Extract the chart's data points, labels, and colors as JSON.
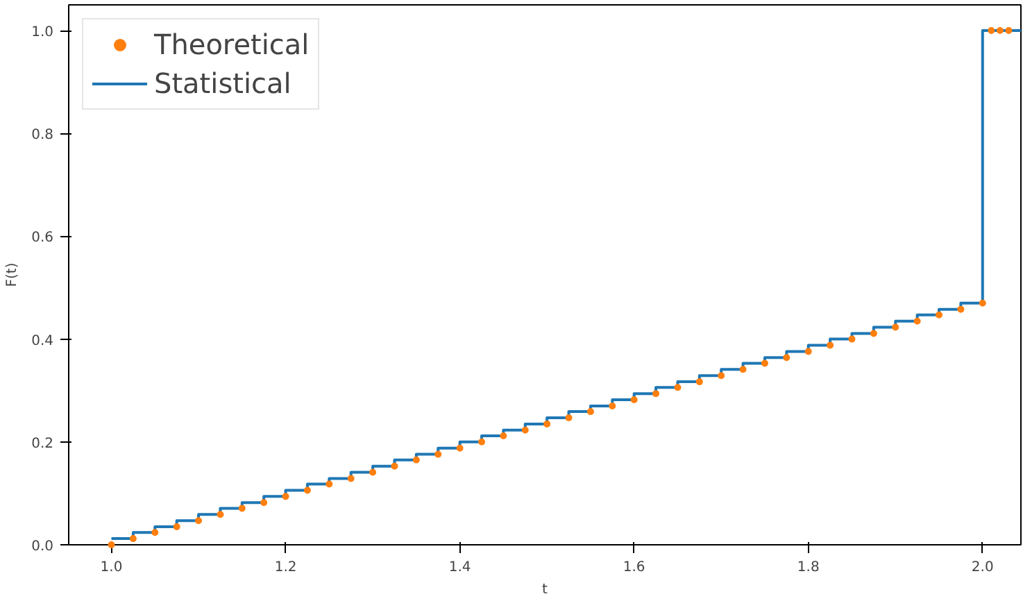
{
  "chart_data": {
    "type": "scatter",
    "xlabel": "t",
    "ylabel": "F(t)",
    "xlim": [
      0.951,
      2.044
    ],
    "ylim": [
      0,
      1.05
    ],
    "xticks": [
      {
        "value": 1.0,
        "label": "1.0"
      },
      {
        "value": 1.2,
        "label": "1.2"
      },
      {
        "value": 1.4,
        "label": "1.4"
      },
      {
        "value": 1.6,
        "label": "1.6"
      },
      {
        "value": 1.8,
        "label": "1.8"
      },
      {
        "value": 2.0,
        "label": "2.0"
      }
    ],
    "yticks": [
      {
        "value": 0,
        "label": "0.0"
      },
      {
        "value": 0.2,
        "label": "0.2"
      },
      {
        "value": 0.4,
        "label": "0.4"
      },
      {
        "value": 0.6,
        "label": "0.6"
      },
      {
        "value": 0.8,
        "label": "0.8"
      },
      {
        "value": 1.0,
        "label": "1.0"
      }
    ],
    "grid": false,
    "legend": "top left",
    "series": [
      {
        "name": "Theoretical",
        "marker": "circle",
        "color": "#ff7f0e",
        "x": [
          1.0,
          1.025,
          1.05,
          1.075,
          1.1,
          1.125,
          1.15,
          1.175,
          1.2,
          1.225,
          1.25,
          1.275,
          1.3,
          1.325,
          1.35,
          1.375,
          1.4,
          1.425,
          1.45,
          1.475,
          1.5,
          1.525,
          1.55,
          1.575,
          1.6,
          1.625,
          1.65,
          1.675,
          1.7,
          1.725,
          1.75,
          1.775,
          1.8,
          1.825,
          1.85,
          1.875,
          1.9,
          1.925,
          1.95,
          1.975,
          2.0,
          2.01,
          2.02,
          2.03
        ],
        "values": [
          0,
          0.012,
          0.024,
          0.035,
          0.047,
          0.059,
          0.071,
          0.082,
          0.094,
          0.106,
          0.118,
          0.129,
          0.141,
          0.153,
          0.165,
          0.176,
          0.188,
          0.2,
          0.212,
          0.223,
          0.235,
          0.247,
          0.259,
          0.27,
          0.282,
          0.294,
          0.306,
          0.317,
          0.329,
          0.341,
          0.353,
          0.364,
          0.376,
          0.388,
          0.4,
          0.411,
          0.423,
          0.435,
          0.447,
          0.458,
          0.47,
          1.0,
          1.0,
          1.0
        ]
      },
      {
        "name": "Statistical",
        "type": "step",
        "color": "#1f77b4",
        "x": [
          1.0,
          1.025,
          1.05,
          1.075,
          1.1,
          1.125,
          1.15,
          1.175,
          1.2,
          1.225,
          1.25,
          1.275,
          1.3,
          1.325,
          1.35,
          1.375,
          1.4,
          1.425,
          1.45,
          1.475,
          1.5,
          1.525,
          1.55,
          1.575,
          1.6,
          1.625,
          1.65,
          1.675,
          1.7,
          1.725,
          1.75,
          1.775,
          1.8,
          1.825,
          1.85,
          1.875,
          1.9,
          1.925,
          1.95,
          1.975,
          2.0,
          2.044
        ],
        "values": [
          0.012,
          0.024,
          0.035,
          0.047,
          0.059,
          0.071,
          0.082,
          0.094,
          0.106,
          0.118,
          0.129,
          0.141,
          0.153,
          0.165,
          0.176,
          0.188,
          0.2,
          0.212,
          0.223,
          0.235,
          0.247,
          0.259,
          0.27,
          0.282,
          0.294,
          0.306,
          0.317,
          0.329,
          0.341,
          0.353,
          0.364,
          0.376,
          0.388,
          0.4,
          0.411,
          0.423,
          0.435,
          0.447,
          0.458,
          0.47,
          1.0,
          1.0
        ]
      }
    ]
  }
}
